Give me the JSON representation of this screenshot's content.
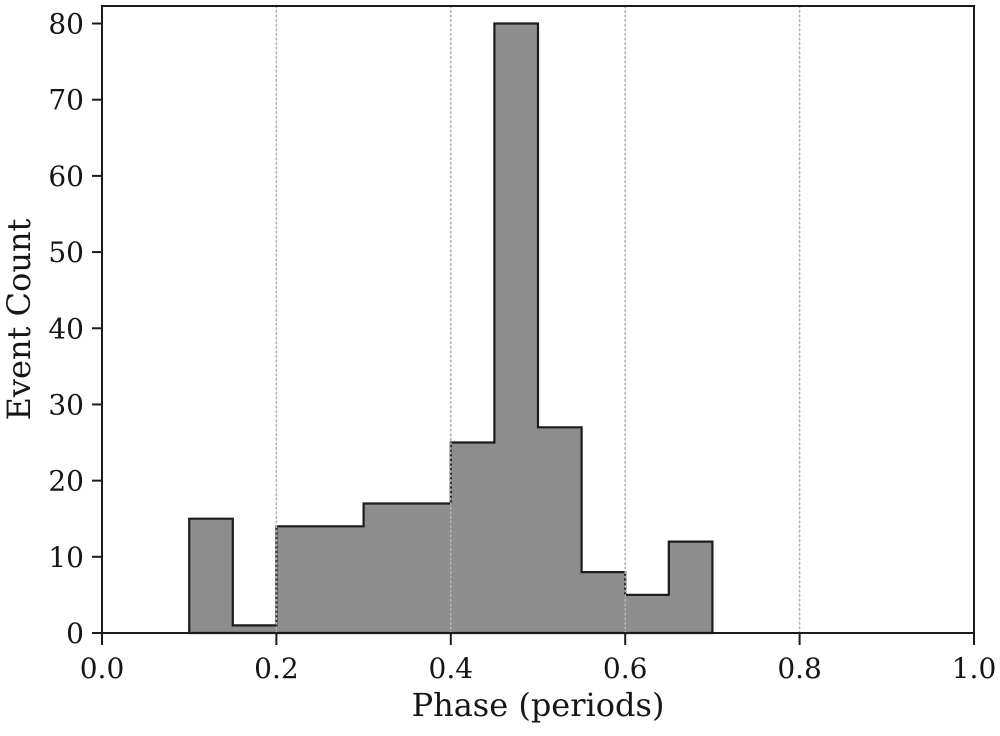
{
  "figure": {
    "background": "#ffffff"
  },
  "chart_data": {
    "type": "bar",
    "subtype": "histogram-stepfilled",
    "title": "",
    "xlabel": "Phase (periods)",
    "ylabel": "Event Count",
    "bin_edges": [
      0.1,
      0.15,
      0.2,
      0.25,
      0.3,
      0.35,
      0.4,
      0.45,
      0.5,
      0.55,
      0.6,
      0.65,
      0.7
    ],
    "counts": [
      15,
      1,
      14,
      14,
      17,
      17,
      25,
      80,
      27,
      8,
      5,
      12
    ],
    "total_events": 235,
    "xlim": [
      0,
      1
    ],
    "ylim": [
      0,
      82.3
    ],
    "xtick_values": [
      0.0,
      0.2,
      0.4,
      0.6,
      0.8,
      1.0
    ],
    "xtick_labels": [
      "0.0",
      "0.2",
      "0.4",
      "0.6",
      "0.8",
      "1.0"
    ],
    "ytick_values": [
      0,
      10,
      20,
      30,
      40,
      50,
      60,
      70,
      80
    ],
    "ytick_labels": [
      "0",
      "10",
      "20",
      "30",
      "40",
      "50",
      "60",
      "70",
      "80"
    ],
    "grid_x_values": [
      0.2,
      0.4,
      0.6,
      0.8
    ],
    "grid_style": "dotted-vertical-above-bars",
    "legend": "none",
    "colors": {
      "bar_fill": "#8d8d8d",
      "bar_edge": "#1c1c1c",
      "grid": "#b3b3b3",
      "frame": "#1c1c1c",
      "text": "#161616"
    }
  }
}
